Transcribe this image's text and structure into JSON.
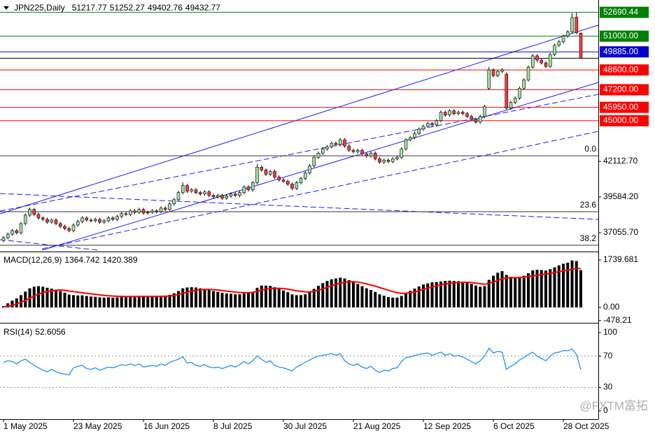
{
  "chart_data": [
    {
      "type": "candlestick",
      "symbol": "JPN225,Daily",
      "bull_color": "#9fdf9f",
      "bear_color": "#ff3b3b",
      "xlim": [
        -0.8,
        136
      ],
      "xticks": [
        {
          "value": 0,
          "label": "1 May 2025"
        },
        {
          "value": 16,
          "label": "23 May 2025"
        },
        {
          "value": 32,
          "label": "16 Jun 2025"
        },
        {
          "value": 48,
          "label": "8 Jul 2025"
        },
        {
          "value": 64,
          "label": "30 Jul 2025"
        },
        {
          "value": 80,
          "label": "21 Aug 2025"
        },
        {
          "value": 96,
          "label": "12 Sep 2025"
        },
        {
          "value": 112,
          "label": "6 Oct 2025"
        },
        {
          "value": 128,
          "label": "28 Oct 2025"
        }
      ],
      "ylim": [
        35816,
        52722
      ],
      "yticks": [
        {
          "value": 42112.7,
          "label": "42112.70"
        },
        {
          "value": 39584.2,
          "label": "39584.20"
        },
        {
          "value": 37055.7,
          "label": "37055.70"
        }
      ],
      "levels": [
        {
          "value": 52690.44,
          "color": "#008000"
        },
        {
          "value": 51000,
          "label": "51000.00",
          "color": "#008000"
        },
        {
          "value": 49885,
          "label": "49885.00",
          "color": "#0000cc"
        },
        {
          "value": 48600,
          "label": "48600.00",
          "color": "#ff0000"
        },
        {
          "value": 47200,
          "label": "47200.00",
          "color": "#ff0000"
        },
        {
          "value": 45950,
          "label": "45950.00",
          "color": "#ff0000"
        },
        {
          "value": 45000,
          "label": "45000.00",
          "color": "#ff0000"
        }
      ],
      "fib_levels": [
        {
          "price": 42509,
          "label": "0.0"
        },
        {
          "price": 38543,
          "label": "23.6"
        },
        {
          "price": 36163,
          "label": "38.2"
        }
      ],
      "watermark": "@FXTM富拓",
      "open": [
        36500,
        36700,
        36950,
        37200,
        37050,
        37700,
        38300,
        38700,
        38350,
        38100,
        38000,
        37800,
        37950,
        37700,
        37500,
        37350,
        37200,
        37600,
        37850,
        38100,
        37950,
        37900,
        38000,
        37800,
        37900,
        38100,
        38000,
        38200,
        38400,
        38350,
        38600,
        38500,
        38700,
        38450,
        38500,
        38600,
        38550,
        38800,
        38700,
        39100,
        39400,
        39900,
        40400,
        40000,
        40100,
        39900,
        39800,
        39950,
        39700,
        39600,
        39700,
        39500,
        39650,
        39800,
        39700,
        39900,
        40300,
        40100,
        40600,
        41700,
        41500,
        41200,
        41400,
        41000,
        40800,
        40700,
        40500,
        40200,
        40600,
        40900,
        41300,
        41800,
        42400,
        42700,
        43000,
        43150,
        43400,
        43300,
        43650,
        43200,
        42900,
        42800,
        42900,
        42650,
        42500,
        42700,
        42300,
        42060,
        42200,
        42100,
        42300,
        42400,
        43000,
        43650,
        43800,
        44100,
        44400,
        44600,
        44800,
        44700,
        45000,
        45600,
        45400,
        45700,
        45500,
        45600,
        45500,
        45300,
        45100,
        44900,
        45300,
        47300,
        48600,
        48200,
        48500,
        48300,
        45900,
        46300,
        46600,
        47300,
        47900,
        48800,
        49600,
        49300,
        49100,
        48850,
        49700,
        50350,
        50600,
        51000,
        51300,
        52350,
        51217.77
      ],
      "high": [
        36820,
        37070,
        37320,
        37320,
        37820,
        38420,
        38820,
        38820,
        38470,
        38220,
        38120,
        38070,
        38070,
        37820,
        37620,
        37470,
        37720,
        37970,
        38220,
        38220,
        38070,
        38120,
        38120,
        38020,
        38220,
        38220,
        38320,
        38520,
        38520,
        38720,
        38720,
        38820,
        38820,
        38620,
        38720,
        38720,
        38920,
        38920,
        39220,
        39520,
        40020,
        40620,
        40520,
        40220,
        40220,
        40020,
        40070,
        40070,
        39820,
        39820,
        39820,
        39770,
        39920,
        39920,
        40020,
        40420,
        40420,
        40720,
        41920,
        41820,
        41620,
        41520,
        41520,
        41120,
        40920,
        40820,
        40620,
        40720,
        41020,
        41420,
        41920,
        42520,
        42820,
        43120,
        43270,
        43520,
        43520,
        43770,
        43770,
        43320,
        43020,
        43020,
        43020,
        42770,
        42820,
        42820,
        42420,
        42320,
        42320,
        42420,
        42520,
        43120,
        43770,
        43920,
        44220,
        44520,
        44720,
        44920,
        44920,
        45120,
        45720,
        45720,
        45820,
        45820,
        45720,
        45720,
        45620,
        45420,
        45220,
        45420,
        46120,
        48820,
        48720,
        48620,
        48720,
        48420,
        46420,
        46720,
        47420,
        48020,
        48920,
        49720,
        49720,
        49420,
        49220,
        49820,
        50470,
        50720,
        51120,
        51420,
        52620,
        52680,
        51252.27
      ],
      "low": [
        36380,
        36580,
        36830,
        36930,
        36930,
        37580,
        38180,
        38230,
        37980,
        37880,
        37680,
        37680,
        37580,
        37380,
        37230,
        37080,
        37080,
        37480,
        37730,
        37830,
        37780,
        37780,
        37680,
        37680,
        37780,
        37880,
        37880,
        38080,
        38230,
        38230,
        38380,
        38380,
        38330,
        38330,
        38380,
        38430,
        38430,
        38580,
        38580,
        38980,
        39280,
        39780,
        39880,
        39880,
        39780,
        39680,
        39680,
        39580,
        39480,
        39480,
        39380,
        39380,
        39530,
        39580,
        39580,
        39780,
        39980,
        39980,
        40480,
        41380,
        41080,
        41080,
        40880,
        40680,
        40580,
        40380,
        40080,
        40080,
        40480,
        40780,
        41180,
        41680,
        42280,
        42580,
        42880,
        43030,
        43180,
        43180,
        43080,
        42780,
        42680,
        42680,
        42530,
        42380,
        42380,
        42180,
        41940,
        41940,
        41980,
        41980,
        42180,
        42280,
        42880,
        43530,
        43680,
        43980,
        44280,
        44480,
        44580,
        44580,
        44880,
        45280,
        45280,
        45380,
        45380,
        45380,
        45180,
        44980,
        44780,
        44780,
        45180,
        47180,
        48080,
        48080,
        48380,
        45780,
        45780,
        46180,
        46480,
        47180,
        47780,
        48680,
        49180,
        48980,
        48730,
        48730,
        49580,
        50230,
        50480,
        50880,
        51180,
        51130,
        49402.76
      ],
      "close": [
        36700,
        36950,
        37200,
        37050,
        37700,
        38300,
        38700,
        38350,
        38100,
        38000,
        37800,
        37950,
        37700,
        37500,
        37350,
        37200,
        37600,
        37850,
        38100,
        37950,
        37900,
        38000,
        37800,
        37900,
        38100,
        38000,
        38200,
        38400,
        38350,
        38600,
        38500,
        38700,
        38450,
        38500,
        38600,
        38550,
        38800,
        38700,
        39100,
        39400,
        39900,
        40400,
        40000,
        40100,
        39900,
        39800,
        39950,
        39700,
        39600,
        39700,
        39500,
        39650,
        39800,
        39700,
        39900,
        40300,
        40100,
        40600,
        41700,
        41500,
        41200,
        41400,
        41000,
        40800,
        40700,
        40500,
        40200,
        40600,
        40900,
        41300,
        41800,
        42400,
        42700,
        43000,
        43150,
        43400,
        43300,
        43650,
        43200,
        42900,
        42800,
        42900,
        42650,
        42500,
        42700,
        42300,
        42060,
        42200,
        42100,
        42300,
        42400,
        43000,
        43650,
        43800,
        44100,
        44400,
        44600,
        44800,
        44700,
        45000,
        45600,
        45400,
        45700,
        45500,
        45600,
        45500,
        45300,
        45100,
        44900,
        45300,
        46000,
        48600,
        48200,
        48500,
        48600,
        45900,
        46300,
        46600,
        47300,
        47900,
        48800,
        49600,
        49300,
        49100,
        48850,
        49700,
        50350,
        50600,
        51000,
        51300,
        52300,
        51250,
        49432.77
      ]
    },
    {
      "type": "macd",
      "title": "MACD(12,26,9)",
      "ylim": [
        -478.21,
        1739.681
      ],
      "yticks": [
        1739.681,
        {
          "value": 0,
          "label": "0.00"
        },
        -478.21
      ],
      "histogram": {
        "color": "#000000",
        "values": [
          50,
          150,
          250,
          330,
          450,
          580,
          700,
          760,
          780,
          760,
          720,
          690,
          650,
          600,
          540,
          470,
          450,
          440,
          440,
          420,
          400,
          390,
          370,
          360,
          370,
          360,
          370,
          390,
          390,
          410,
          410,
          420,
          400,
          400,
          400,
          400,
          420,
          420,
          460,
          520,
          600,
          700,
          730,
          740,
          730,
          700,
          680,
          640,
          600,
          570,
          530,
          510,
          500,
          480,
          480,
          520,
          530,
          580,
          720,
          800,
          800,
          790,
          740,
          680,
          620,
          560,
          480,
          450,
          450,
          480,
          560,
          680,
          790,
          890,
          970,
          1030,
          1060,
          1090,
          1060,
          1000,
          930,
          860,
          780,
          700,
          640,
          570,
          480,
          430,
          380,
          360,
          360,
          420,
          520,
          610,
          690,
          770,
          840,
          880,
          920,
          930,
          950,
          970,
          980,
          970,
          960,
          940,
          900,
          860,
          800,
          760,
          780,
          1010,
          1160,
          1270,
          1330,
          1190,
          1120,
          1090,
          1120,
          1160,
          1250,
          1360,
          1380,
          1370,
          1350,
          1400,
          1470,
          1540,
          1600,
          1640,
          1720,
          1700,
          1364.742
        ]
      },
      "signal": {
        "color": "#ff0000",
        "values": [
          20,
          40,
          80,
          130,
          190,
          260,
          340,
          420,
          490,
          550,
          590,
          610,
          630,
          640,
          630,
          600,
          580,
          560,
          540,
          520,
          500,
          480,
          460,
          440,
          430,
          420,
          410,
          405,
          400,
          400,
          400,
          405,
          405,
          405,
          405,
          405,
          410,
          410,
          420,
          440,
          470,
          520,
          560,
          600,
          630,
          650,
          660,
          660,
          650,
          640,
          620,
          600,
          580,
          560,
          550,
          540,
          540,
          550,
          590,
          630,
          670,
          690,
          700,
          700,
          690,
          670,
          640,
          610,
          590,
          570,
          570,
          590,
          630,
          680,
          740,
          790,
          840,
          890,
          920,
          940,
          940,
          930,
          900,
          860,
          820,
          780,
          730,
          680,
          630,
          580,
          540,
          520,
          520,
          540,
          570,
          610,
          660,
          710,
          750,
          790,
          830,
          860,
          880,
          900,
          910,
          920,
          920,
          910,
          890,
          870,
          850,
          880,
          930,
          990,
          1050,
          1080,
          1090,
          1090,
          1100,
          1110,
          1130,
          1150,
          1180,
          1200,
          1220,
          1250,
          1280,
          1310,
          1340,
          1370,
          1400,
          1430,
          1420.389
        ]
      }
    },
    {
      "type": "line",
      "title": "RSI(14)",
      "color": "#1e90ff",
      "ylim": [
        0,
        100
      ],
      "yticks": [
        100,
        70,
        30,
        0
      ],
      "values": [
        62,
        64,
        63,
        60,
        64,
        66,
        62,
        58,
        55,
        52,
        50,
        53,
        50,
        48,
        47,
        46,
        55,
        57,
        58,
        54,
        53,
        55,
        52,
        54,
        56,
        55,
        57,
        59,
        58,
        60,
        58,
        60,
        56,
        57,
        58,
        57,
        60,
        58,
        62,
        64,
        66,
        69,
        61,
        62,
        58,
        57,
        59,
        56,
        55,
        56,
        54,
        56,
        58,
        56,
        59,
        63,
        60,
        64,
        70,
        66,
        62,
        64,
        58,
        56,
        55,
        53,
        51,
        56,
        59,
        62,
        65,
        68,
        70,
        71,
        72,
        73,
        71,
        73,
        64,
        60,
        58,
        60,
        56,
        54,
        57,
        52,
        49,
        52,
        51,
        54,
        55,
        63,
        68,
        69,
        71,
        72,
        73,
        74,
        71,
        73,
        75,
        71,
        73,
        70,
        71,
        69,
        66,
        63,
        60,
        64,
        70,
        80,
        74,
        76,
        75,
        53,
        57,
        60,
        65,
        68,
        72,
        75,
        70,
        67,
        64,
        70,
        74,
        75,
        77,
        77,
        79,
        72,
        52.6056
      ]
    }
  ]
}
